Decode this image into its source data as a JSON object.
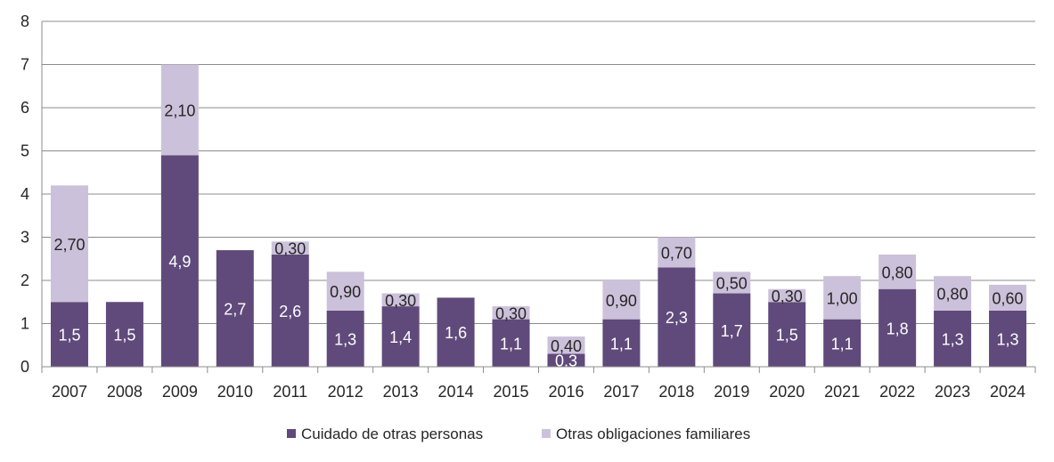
{
  "chart_data": {
    "type": "bar",
    "stacked": true,
    "categories": [
      "2007",
      "2008",
      "2009",
      "2010",
      "2011",
      "2012",
      "2013",
      "2014",
      "2015",
      "2016",
      "2017",
      "2018",
      "2019",
      "2020",
      "2021",
      "2022",
      "2023",
      "2024"
    ],
    "series": [
      {
        "name": "Cuidado de otras personas",
        "color": "#604a7b",
        "label_color": "#ffffff",
        "values": [
          1.5,
          1.5,
          4.9,
          2.7,
          2.6,
          1.3,
          1.4,
          1.6,
          1.1,
          0.3,
          1.1,
          2.3,
          1.7,
          1.5,
          1.1,
          1.8,
          1.3,
          1.3
        ],
        "labels": [
          "1,5",
          "1,5",
          "4,9",
          "2,7",
          "2,6",
          "1,3",
          "1,4",
          "1,6",
          "1,1",
          "0,3",
          "1,1",
          "2,3",
          "1,7",
          "1,5",
          "1,1",
          "1,8",
          "1,3",
          "1,3"
        ]
      },
      {
        "name": "Otras obligaciones familiares",
        "color": "#ccc1da",
        "label_color": "#262626",
        "values": [
          2.7,
          null,
          2.1,
          null,
          0.3,
          0.9,
          0.3,
          null,
          0.3,
          0.4,
          0.9,
          0.7,
          0.5,
          0.3,
          1.0,
          0.8,
          0.8,
          0.6
        ],
        "labels": [
          "2,70",
          null,
          "2,10",
          null,
          "0,30",
          "0,90",
          "0,30",
          null,
          "0,30",
          "0,40",
          "0,90",
          "0,70",
          "0,50",
          "0,30",
          "1,00",
          "0,80",
          "0,80",
          "0,60"
        ]
      }
    ],
    "yticks": [
      "0",
      "1",
      "2",
      "3",
      "4",
      "5",
      "6",
      "7",
      "8"
    ],
    "ylim": [
      0,
      8
    ],
    "grid": true,
    "legend": "bottom"
  }
}
